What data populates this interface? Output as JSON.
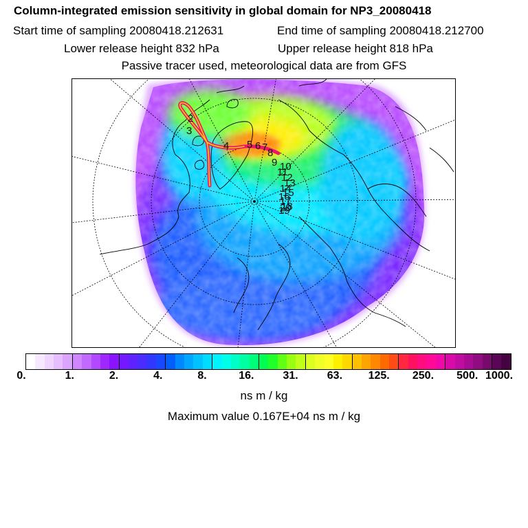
{
  "header": {
    "title": "Column-integrated emission sensitivity in global domain for NP3_20080418",
    "start_time": "Start time of sampling 20080418.212631",
    "end_time": "End time of sampling 20080418.212700",
    "lower_height": "Lower release height  832 hPa",
    "upper_height": "Upper release height  818 hPa",
    "tracer_note": "Passive tracer used, meteorological data are from GFS"
  },
  "map": {
    "projection": "north-polar-stereographic",
    "trajectory_labels": [
      "2",
      "3",
      "4",
      "5",
      "6",
      "7",
      "8",
      "9",
      "10",
      "11",
      "12",
      "13",
      "14",
      "15",
      "16",
      "17",
      "18",
      "19",
      "20"
    ],
    "colors": {
      "trajectory": "#f0146e",
      "coastline": "#000000",
      "graticule": "#000000"
    }
  },
  "colorbar": {
    "ticks": [
      "0.",
      "1.",
      "2.",
      "4.",
      "8.",
      "16.",
      "31.",
      "63.",
      "125.",
      "250.",
      "500.",
      "1000."
    ],
    "colors": [
      "#ffffff",
      "#f6e8ff",
      "#efd4ff",
      "#e6beff",
      "#dba4ff",
      "#cf86ff",
      "#c26aff",
      "#b248ff",
      "#a028ff",
      "#8a14ff",
      "#7418ff",
      "#5e22ff",
      "#4a2cff",
      "#3038ff",
      "#1848ff",
      "#0060ff",
      "#0088ff",
      "#00a6ff",
      "#00c2ff",
      "#00dcff",
      "#00f4ff",
      "#00ffe8",
      "#00ffc4",
      "#00ffa0",
      "#00ff78",
      "#00ff50",
      "#20ff28",
      "#60ff14",
      "#98ff10",
      "#c0ff18",
      "#dcff20",
      "#f0ff28",
      "#ffff28",
      "#fff000",
      "#ffd800",
      "#ffc000",
      "#ffa400",
      "#ff8800",
      "#ff6a00",
      "#ff4c14",
      "#ff2840",
      "#ff1060",
      "#ff0c80",
      "#ff0a98",
      "#f008a8",
      "#d80aa8",
      "#c00ca0",
      "#a80c94",
      "#900c80",
      "#780a6c",
      "#5a0656",
      "#440440"
    ]
  },
  "unit": "ns m / kg",
  "max_value": "Maximum value  0.167E+04 ns m / kg"
}
